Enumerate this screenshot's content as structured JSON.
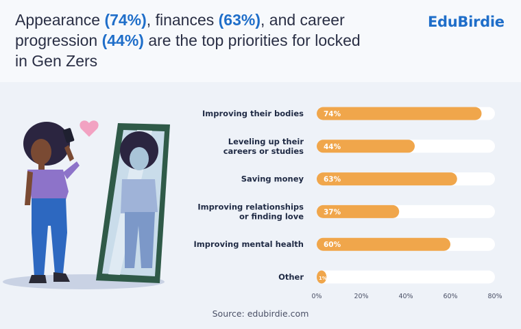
{
  "header": {
    "title_parts": [
      {
        "text": "Appearance ",
        "hl": false
      },
      {
        "text": "(74%)",
        "hl": true
      },
      {
        "text": ", finances ",
        "hl": false
      },
      {
        "text": "(63%)",
        "hl": true
      },
      {
        "text": ", and career progression ",
        "hl": false
      },
      {
        "text": "(44%)",
        "hl": true
      },
      {
        "text": " are the top priorities for locked in Gen Zers",
        "hl": false
      }
    ],
    "brand": "EduBirdie"
  },
  "chart_data": {
    "type": "bar",
    "orientation": "horizontal",
    "categories": [
      [
        "Improving their bodies"
      ],
      [
        "Leveling up their",
        "careers or studies"
      ],
      [
        "Saving money"
      ],
      [
        "Improving relationships",
        "or finding love"
      ],
      [
        "Improving mental health"
      ],
      [
        "Other"
      ]
    ],
    "values": [
      74,
      44,
      63,
      37,
      60,
      1
    ],
    "value_labels": [
      "74%",
      "44%",
      "63%",
      "37%",
      "60%",
      "1%"
    ],
    "xticks": [
      "0%",
      "20%",
      "40%",
      "60%",
      "80%"
    ],
    "xlim": [
      0,
      80
    ],
    "grid": false,
    "colors": {
      "bar": "#f0a64b",
      "track": "#ffffff"
    }
  },
  "source": "Source: edubirdie.com"
}
